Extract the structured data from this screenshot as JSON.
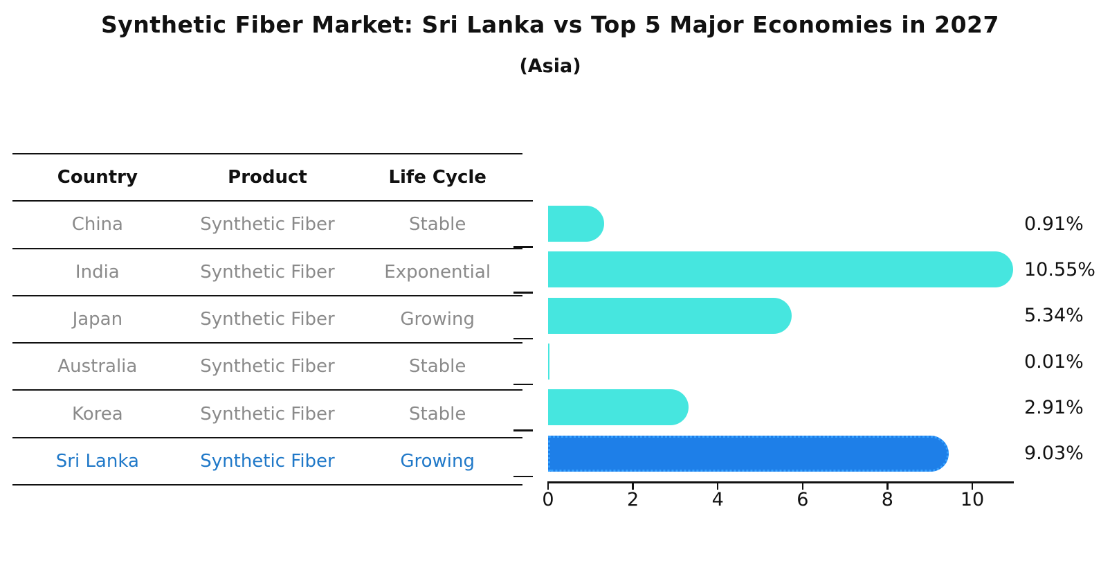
{
  "title": "Synthetic Fiber Market: Sri Lanka vs Top 5 Major Economies in 2027",
  "subtitle": "(Asia)",
  "table": {
    "headers": [
      "Country",
      "Product",
      "Life Cycle"
    ],
    "rows": [
      {
        "country": "China",
        "product": "Synthetic Fiber",
        "life_cycle": "Stable",
        "highlight": false
      },
      {
        "country": "India",
        "product": "Synthetic Fiber",
        "life_cycle": "Exponential",
        "highlight": false
      },
      {
        "country": "Japan",
        "product": "Synthetic Fiber",
        "life_cycle": "Growing",
        "highlight": false
      },
      {
        "country": "Australia",
        "product": "Synthetic Fiber",
        "life_cycle": "Stable",
        "highlight": false
      },
      {
        "country": "Korea",
        "product": "Synthetic Fiber",
        "life_cycle": "Stable",
        "highlight": false
      },
      {
        "country": "Sri Lanka",
        "product": "Synthetic Fiber",
        "life_cycle": "Growing",
        "highlight": true
      }
    ]
  },
  "chart_data": {
    "type": "bar",
    "orientation": "horizontal",
    "title": "Synthetic Fiber Market: Sri Lanka vs Top 5 Major Economies in 2027 (Asia)",
    "categories": [
      "China",
      "India",
      "Japan",
      "Australia",
      "Korea",
      "Sri Lanka"
    ],
    "values": [
      0.91,
      10.55,
      5.34,
      0.01,
      2.91,
      9.03
    ],
    "value_labels": [
      "0.91%",
      "10.55%",
      "5.34%",
      "0.01%",
      "2.91%",
      "9.03%"
    ],
    "unit": "%",
    "xlim": [
      0,
      11
    ],
    "xticks": [
      0,
      2,
      4,
      6,
      8,
      10
    ],
    "grid": false,
    "legend": false,
    "highlight_index": 5,
    "colors": {
      "bar": "#46e6df",
      "highlight_bar": "#1e7fe8",
      "highlight_edge": "#35a0ff",
      "axis": "#111111",
      "row_text": "#8a8a8a",
      "highlight_text": "#1f78c8"
    }
  }
}
